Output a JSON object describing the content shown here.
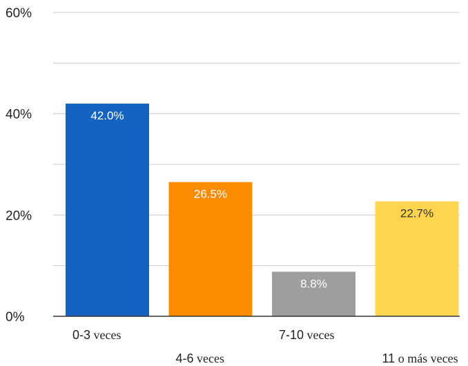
{
  "chart_data": {
    "type": "bar",
    "categories": [
      "0-3 veces",
      "4-6 veces",
      "7-10 veces",
      "11 o más veces"
    ],
    "values": [
      42.0,
      26.5,
      8.8,
      22.7
    ],
    "value_labels": [
      "42.0%",
      "26.5%",
      "8.8%",
      "22.7%"
    ],
    "colors": [
      "#1565C0",
      "#FB8C00",
      "#9E9E9E",
      "#FFD54F"
    ],
    "label_colors": [
      "#ffffff",
      "#ffffff",
      "#ffffff",
      "#333333"
    ],
    "ylim": [
      0,
      60
    ],
    "yticks": [
      0,
      20,
      40,
      60
    ],
    "ytick_labels": [
      "0%",
      "20%",
      "40%",
      "60%"
    ],
    "grid": true,
    "legend": "none"
  }
}
